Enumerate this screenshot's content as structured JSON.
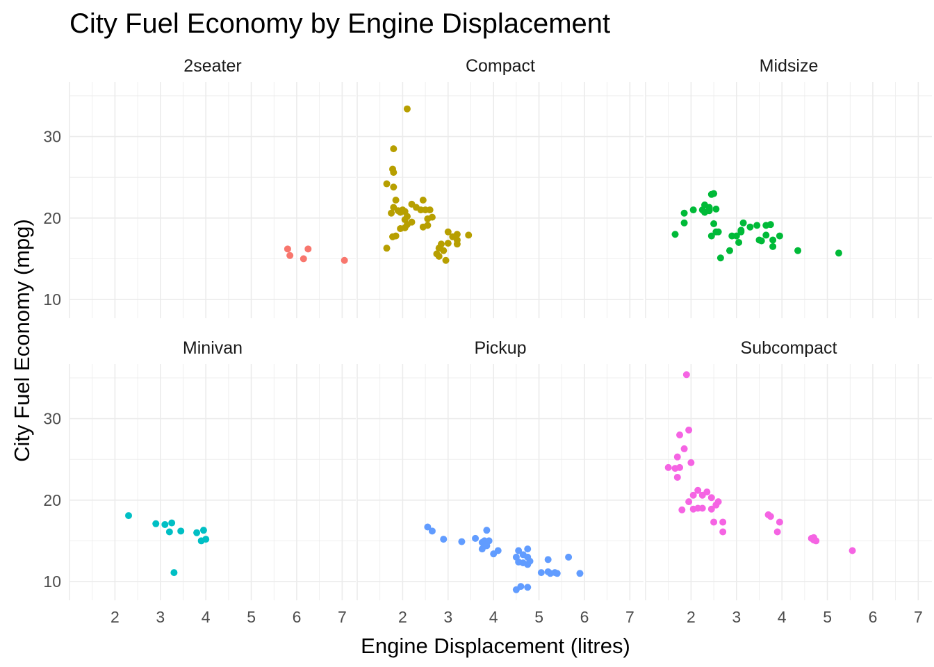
{
  "chart_data": {
    "type": "scatter",
    "title": "City Fuel Economy by Engine Displacement",
    "xlabel": "Engine Displacement (litres)",
    "ylabel": "City Fuel Economy (mpg)",
    "xlim": [
      1.0,
      7.3
    ],
    "ylim": [
      7.7,
      36.7
    ],
    "x_ticks": [
      2,
      3,
      4,
      5,
      6,
      7
    ],
    "y_ticks": [
      10,
      20,
      30
    ],
    "grid": true,
    "legend": "none",
    "facets": [
      {
        "name": "2seater",
        "color": "#F8766D",
        "points": [
          [
            5.8,
            16.2
          ],
          [
            5.85,
            15.4
          ],
          [
            6.15,
            15.0
          ],
          [
            6.25,
            16.2
          ],
          [
            7.05,
            14.8
          ]
        ]
      },
      {
        "name": "Compact",
        "color": "#B79F00",
        "points": [
          [
            2.1,
            33.4
          ],
          [
            1.8,
            28.5
          ],
          [
            1.78,
            26.0
          ],
          [
            1.8,
            25.6
          ],
          [
            1.8,
            23.8
          ],
          [
            1.65,
            24.2
          ],
          [
            1.85,
            22.2
          ],
          [
            1.8,
            21.3
          ],
          [
            1.75,
            20.6
          ],
          [
            1.9,
            20.9
          ],
          [
            1.95,
            20.7
          ],
          [
            2.0,
            21.0
          ],
          [
            2.05,
            20.8
          ],
          [
            2.1,
            20.2
          ],
          [
            2.05,
            19.8
          ],
          [
            2.2,
            21.7
          ],
          [
            2.3,
            21.3
          ],
          [
            2.2,
            19.5
          ],
          [
            2.4,
            21.0
          ],
          [
            2.45,
            22.2
          ],
          [
            2.5,
            21.0
          ],
          [
            2.6,
            21.0
          ],
          [
            2.65,
            20.1
          ],
          [
            2.55,
            19.9
          ],
          [
            2.45,
            18.9
          ],
          [
            2.55,
            19.1
          ],
          [
            2.1,
            19.2
          ],
          [
            2.05,
            18.8
          ],
          [
            1.95,
            18.7
          ],
          [
            1.85,
            17.8
          ],
          [
            1.78,
            17.7
          ],
          [
            1.65,
            16.3
          ],
          [
            2.8,
            16.3
          ],
          [
            2.85,
            16.8
          ],
          [
            2.9,
            16.0
          ],
          [
            2.75,
            15.6
          ],
          [
            2.8,
            15.3
          ],
          [
            2.95,
            14.8
          ],
          [
            3.0,
            16.9
          ],
          [
            3.0,
            18.3
          ],
          [
            3.1,
            17.7
          ],
          [
            3.2,
            17.3
          ],
          [
            3.2,
            18.0
          ],
          [
            3.2,
            16.8
          ],
          [
            3.45,
            17.9
          ]
        ]
      },
      {
        "name": "Midsize",
        "color": "#00BA38",
        "points": [
          [
            1.65,
            18.0
          ],
          [
            1.85,
            20.6
          ],
          [
            1.85,
            19.4
          ],
          [
            2.05,
            21.0
          ],
          [
            2.25,
            21.0
          ],
          [
            2.3,
            20.7
          ],
          [
            2.3,
            21.6
          ],
          [
            2.4,
            21.3
          ],
          [
            2.45,
            22.9
          ],
          [
            2.5,
            23.0
          ],
          [
            2.4,
            20.9
          ],
          [
            2.55,
            21.1
          ],
          [
            2.5,
            19.3
          ],
          [
            2.55,
            18.3
          ],
          [
            2.6,
            18.3
          ],
          [
            2.45,
            17.8
          ],
          [
            2.65,
            15.1
          ],
          [
            2.85,
            16.0
          ],
          [
            2.9,
            17.8
          ],
          [
            3.0,
            17.8
          ],
          [
            3.05,
            17.0
          ],
          [
            3.1,
            18.3
          ],
          [
            3.1,
            18.5
          ],
          [
            3.15,
            19.4
          ],
          [
            3.3,
            18.9
          ],
          [
            3.45,
            19.1
          ],
          [
            3.5,
            17.3
          ],
          [
            3.55,
            17.2
          ],
          [
            3.65,
            19.1
          ],
          [
            3.65,
            17.9
          ],
          [
            3.75,
            19.2
          ],
          [
            3.8,
            16.5
          ],
          [
            3.8,
            17.3
          ],
          [
            3.95,
            17.8
          ],
          [
            4.35,
            16.0
          ],
          [
            5.25,
            15.7
          ]
        ]
      },
      {
        "name": "Minivan",
        "color": "#00BFC4",
        "points": [
          [
            2.3,
            18.1
          ],
          [
            2.9,
            17.1
          ],
          [
            3.1,
            17.0
          ],
          [
            3.25,
            17.2
          ],
          [
            3.2,
            16.1
          ],
          [
            3.45,
            16.2
          ],
          [
            3.3,
            11.1
          ],
          [
            3.8,
            16.0
          ],
          [
            3.95,
            16.3
          ],
          [
            3.9,
            15.0
          ],
          [
            4.0,
            15.2
          ]
        ]
      },
      {
        "name": "Pickup",
        "color": "#619CFF",
        "points": [
          [
            2.55,
            16.7
          ],
          [
            2.65,
            16.2
          ],
          [
            2.9,
            15.2
          ],
          [
            3.3,
            14.9
          ],
          [
            3.6,
            15.3
          ],
          [
            3.75,
            14.8
          ],
          [
            3.75,
            14.0
          ],
          [
            3.85,
            14.4
          ],
          [
            3.8,
            15.0
          ],
          [
            3.9,
            15.0
          ],
          [
            3.85,
            16.3
          ],
          [
            4.0,
            13.4
          ],
          [
            4.1,
            13.8
          ],
          [
            4.55,
            13.8
          ],
          [
            4.5,
            13.0
          ],
          [
            4.65,
            13.3
          ],
          [
            4.75,
            14.0
          ],
          [
            4.75,
            13.0
          ],
          [
            4.8,
            12.5
          ],
          [
            4.75,
            12.1
          ],
          [
            4.65,
            12.3
          ],
          [
            4.55,
            12.4
          ],
          [
            5.05,
            11.1
          ],
          [
            5.2,
            12.7
          ],
          [
            5.2,
            11.2
          ],
          [
            5.25,
            11.0
          ],
          [
            5.35,
            11.1
          ],
          [
            5.4,
            11.0
          ],
          [
            5.65,
            13.0
          ],
          [
            5.9,
            11.0
          ],
          [
            4.5,
            9.0
          ],
          [
            4.6,
            9.4
          ],
          [
            4.75,
            9.3
          ]
        ]
      },
      {
        "name": "Subcompact",
        "color": "#F564E3",
        "points": [
          [
            1.9,
            35.4
          ],
          [
            1.95,
            28.6
          ],
          [
            1.85,
            26.3
          ],
          [
            1.75,
            28.0
          ],
          [
            1.7,
            25.3
          ],
          [
            1.5,
            24.0
          ],
          [
            1.65,
            23.9
          ],
          [
            1.75,
            24.0
          ],
          [
            1.7,
            22.8
          ],
          [
            2.0,
            24.6
          ],
          [
            1.8,
            18.8
          ],
          [
            1.95,
            19.8
          ],
          [
            2.05,
            20.6
          ],
          [
            2.15,
            21.2
          ],
          [
            2.25,
            20.6
          ],
          [
            2.35,
            21.0
          ],
          [
            2.45,
            20.3
          ],
          [
            2.05,
            18.9
          ],
          [
            2.15,
            19.0
          ],
          [
            2.25,
            19.0
          ],
          [
            2.45,
            18.9
          ],
          [
            2.55,
            19.4
          ],
          [
            2.6,
            19.8
          ],
          [
            2.5,
            17.3
          ],
          [
            2.7,
            17.3
          ],
          [
            2.7,
            16.1
          ],
          [
            3.7,
            18.2
          ],
          [
            3.75,
            18.0
          ],
          [
            3.95,
            17.3
          ],
          [
            3.9,
            16.1
          ],
          [
            4.65,
            15.3
          ],
          [
            4.7,
            15.1
          ],
          [
            4.75,
            15.0
          ],
          [
            4.7,
            15.4
          ],
          [
            5.55,
            13.8
          ]
        ]
      }
    ]
  }
}
